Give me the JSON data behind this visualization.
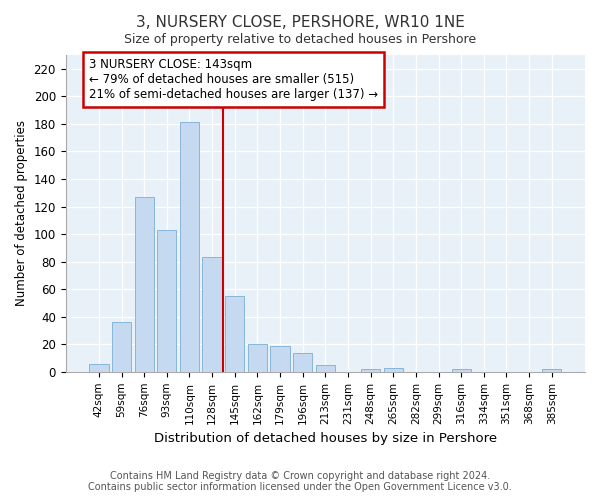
{
  "title": "3, NURSERY CLOSE, PERSHORE, WR10 1NE",
  "subtitle": "Size of property relative to detached houses in Pershore",
  "xlabel": "Distribution of detached houses by size in Pershore",
  "ylabel": "Number of detached properties",
  "bar_labels": [
    "42sqm",
    "59sqm",
    "76sqm",
    "93sqm",
    "110sqm",
    "128sqm",
    "145sqm",
    "162sqm",
    "179sqm",
    "196sqm",
    "213sqm",
    "231sqm",
    "248sqm",
    "265sqm",
    "282sqm",
    "299sqm",
    "316sqm",
    "334sqm",
    "351sqm",
    "368sqm",
    "385sqm"
  ],
  "bar_values": [
    6,
    36,
    127,
    103,
    181,
    83,
    55,
    20,
    19,
    14,
    5,
    0,
    2,
    3,
    0,
    0,
    2,
    0,
    0,
    0,
    2
  ],
  "bar_color": "#c5d9f0",
  "bar_edge_color": "#7bafd4",
  "vline_x": 6.0,
  "vline_color": "#cc0000",
  "annotation_text": "3 NURSERY CLOSE: 143sqm\n← 79% of detached houses are smaller (515)\n21% of semi-detached houses are larger (137) →",
  "annotation_box_color": "#ffffff",
  "annotation_box_edge": "#cc0000",
  "ylim": [
    0,
    230
  ],
  "yticks": [
    0,
    20,
    40,
    60,
    80,
    100,
    120,
    140,
    160,
    180,
    200,
    220
  ],
  "footer": "Contains HM Land Registry data © Crown copyright and database right 2024.\nContains public sector information licensed under the Open Government Licence v3.0.",
  "background_color": "#ffffff",
  "plot_background": "#e8f0f8",
  "grid_color": "#ffffff",
  "title_color": "#333333",
  "text_color": "#333333"
}
